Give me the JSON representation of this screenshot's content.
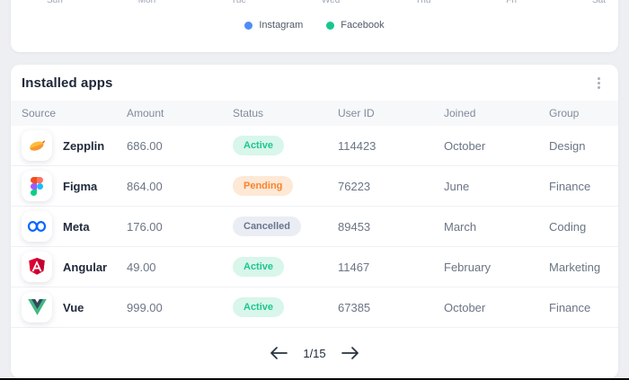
{
  "chart_section": {
    "x_labels": [
      "Sun",
      "Mon",
      "Tue",
      "Wed",
      "Thu",
      "Fri",
      "Sat"
    ],
    "legend": [
      {
        "label": "Instagram",
        "color": "#4e8df5",
        "icon": "instagram-series-dot"
      },
      {
        "label": "Facebook",
        "color": "#15c78e",
        "icon": "facebook-series-dot"
      }
    ]
  },
  "installed_apps": {
    "title": "Installed apps",
    "menu_icon": "kebab-menu-icon",
    "columns": [
      "Source",
      "Amount",
      "Status",
      "User ID",
      "Joined",
      "Group"
    ],
    "rows": [
      {
        "source": "Zepplin",
        "icon": "zeplin-logo",
        "amount": "686.00",
        "status": "Active",
        "user_id": "114423",
        "joined": "October",
        "group": "Design"
      },
      {
        "source": "Figma",
        "icon": "figma-logo",
        "amount": "864.00",
        "status": "Pending",
        "user_id": "76223",
        "joined": "June",
        "group": "Finance"
      },
      {
        "source": "Meta",
        "icon": "meta-logo",
        "amount": "176.00",
        "status": "Cancelled",
        "user_id": "89453",
        "joined": "March",
        "group": "Coding"
      },
      {
        "source": "Angular",
        "icon": "angular-logo",
        "amount": "49.00",
        "status": "Active",
        "user_id": "11467",
        "joined": "February",
        "group": "Marketing"
      },
      {
        "source": "Vue",
        "icon": "vue-logo",
        "amount": "999.00",
        "status": "Active",
        "user_id": "67385",
        "joined": "October",
        "group": "Finance"
      }
    ],
    "pagination": {
      "page_label": "1/15",
      "prev_icon": "arrow-left-icon",
      "next_icon": "arrow-right-icon"
    }
  },
  "status_styles": {
    "Active": {
      "bg": "#d8f6ea",
      "text": "#1dc690"
    },
    "Pending": {
      "bg": "#fee8d6",
      "text": "#f8832d"
    },
    "Cancelled": {
      "bg": "#eaedf3",
      "text": "#6a7590"
    }
  }
}
